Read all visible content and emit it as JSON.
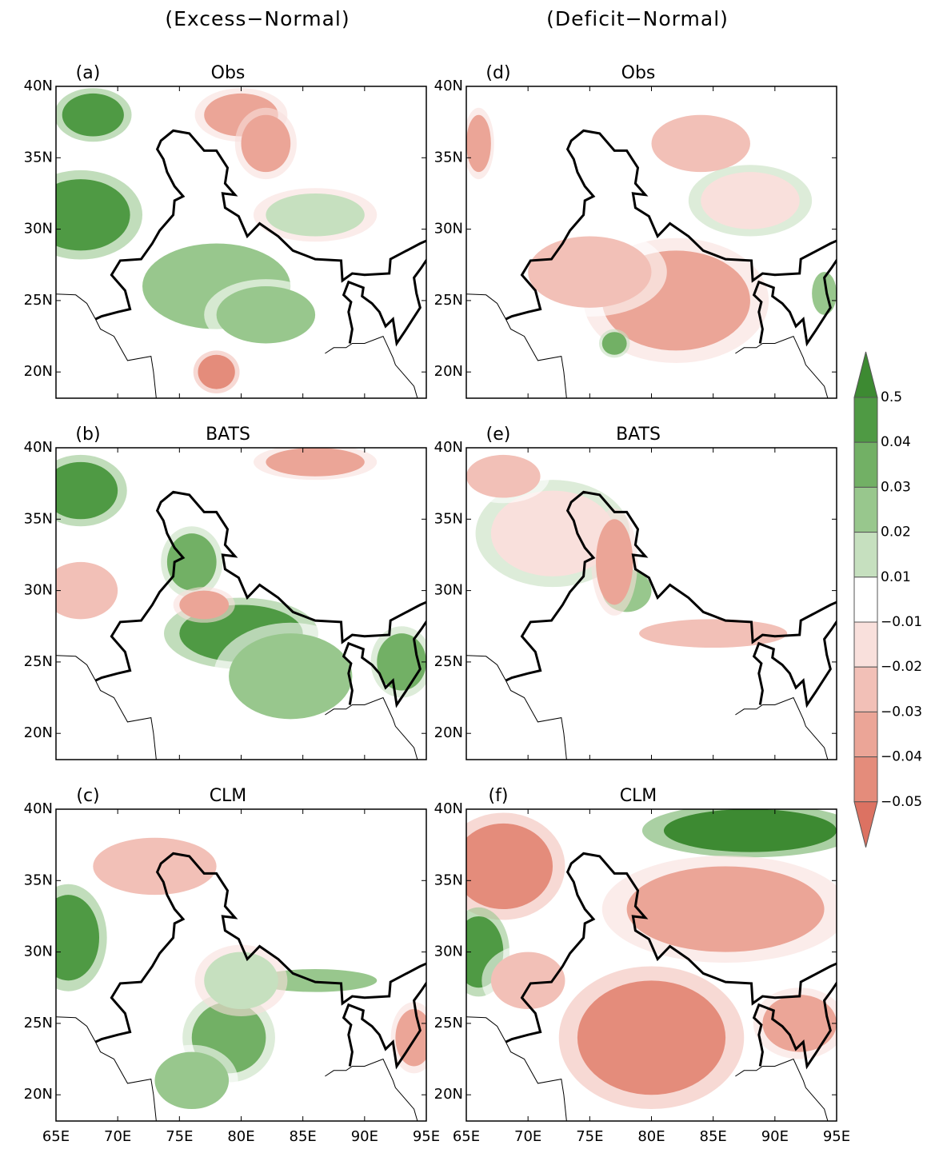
{
  "columns": [
    "(Excess−Normal)",
    "(Deficit−Normal)"
  ],
  "panels": [
    {
      "label": "(a)",
      "title": "Obs"
    },
    {
      "label": "(b)",
      "title": "BATS"
    },
    {
      "label": "(c)",
      "title": "CLM"
    },
    {
      "label": "(d)",
      "title": "Obs"
    },
    {
      "label": "(e)",
      "title": "BATS"
    },
    {
      "label": "(f)",
      "title": "CLM"
    }
  ],
  "lat_ticks": [
    "40N",
    "35N",
    "30N",
    "25N",
    "20N"
  ],
  "lon_ticks": [
    "65E",
    "70E",
    "75E",
    "80E",
    "85E",
    "90E",
    "95E"
  ],
  "colorbar": {
    "labels": [
      "0.5",
      "0.04",
      "0.03",
      "0.02",
      "0.01",
      "−0.01",
      "−0.02",
      "−0.03",
      "−0.04",
      "−0.05"
    ],
    "colors": [
      "#3d8a32",
      "#4f9a44",
      "#72b065",
      "#98c78d",
      "#c6e0bf",
      "#ffffff",
      "#f9e0dc",
      "#f2c0b7",
      "#eba597",
      "#e48c7b",
      "#dc7262"
    ]
  }
}
